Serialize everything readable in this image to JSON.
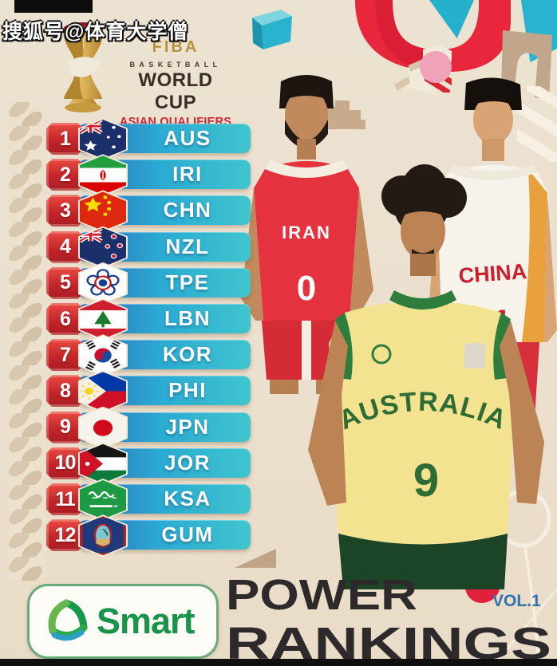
{
  "watermark": "搜狐号@体育大学僧",
  "logo": {
    "fiba": "FIBA",
    "basketball": "BASKETBALL",
    "world_cup": "WORLD CUP",
    "asian_qualifiers": "ASIAN QUALIFIERS"
  },
  "rankings": [
    {
      "rank": "1",
      "code": "AUS",
      "flag": "aus"
    },
    {
      "rank": "2",
      "code": "IRI",
      "flag": "iri"
    },
    {
      "rank": "3",
      "code": "CHN",
      "flag": "chn"
    },
    {
      "rank": "4",
      "code": "NZL",
      "flag": "nzl"
    },
    {
      "rank": "5",
      "code": "TPE",
      "flag": "tpe"
    },
    {
      "rank": "6",
      "code": "LBN",
      "flag": "lbn"
    },
    {
      "rank": "7",
      "code": "KOR",
      "flag": "kor"
    },
    {
      "rank": "8",
      "code": "PHI",
      "flag": "phi"
    },
    {
      "rank": "9",
      "code": "JPN",
      "flag": "jpn"
    },
    {
      "rank": "10",
      "code": "JOR",
      "flag": "jor"
    },
    {
      "rank": "11",
      "code": "KSA",
      "flag": "ksa"
    },
    {
      "rank": "12",
      "code": "GUM",
      "flag": "gum"
    }
  ],
  "players": {
    "iran": {
      "jersey_text": "IRAN",
      "number": "0"
    },
    "australia": {
      "jersey_text": "AUSTRALIA",
      "number": "9"
    },
    "china": {
      "jersey_text": "CHINA",
      "number": "21"
    }
  },
  "footer": {
    "sponsor": "Smart",
    "title_line1": "POWER",
    "title_line2": "RANKINGS",
    "volume": "VOL.1"
  },
  "colors": {
    "background": "#ebe0ce",
    "bar_blue": "#2e6fb7",
    "bar_teal": "#3fc5ce",
    "badge_red": "#c3262b",
    "accent_red": "#e8273c",
    "accent_teal": "#2ab3cf",
    "accent_pink": "#f0a3b8",
    "title_dark": "#2e2a2b",
    "volume_blue": "#3272b4",
    "smart_green": "#17934a",
    "fiba_gold": "#b8903e",
    "qualifier_red": "#ce2433"
  }
}
